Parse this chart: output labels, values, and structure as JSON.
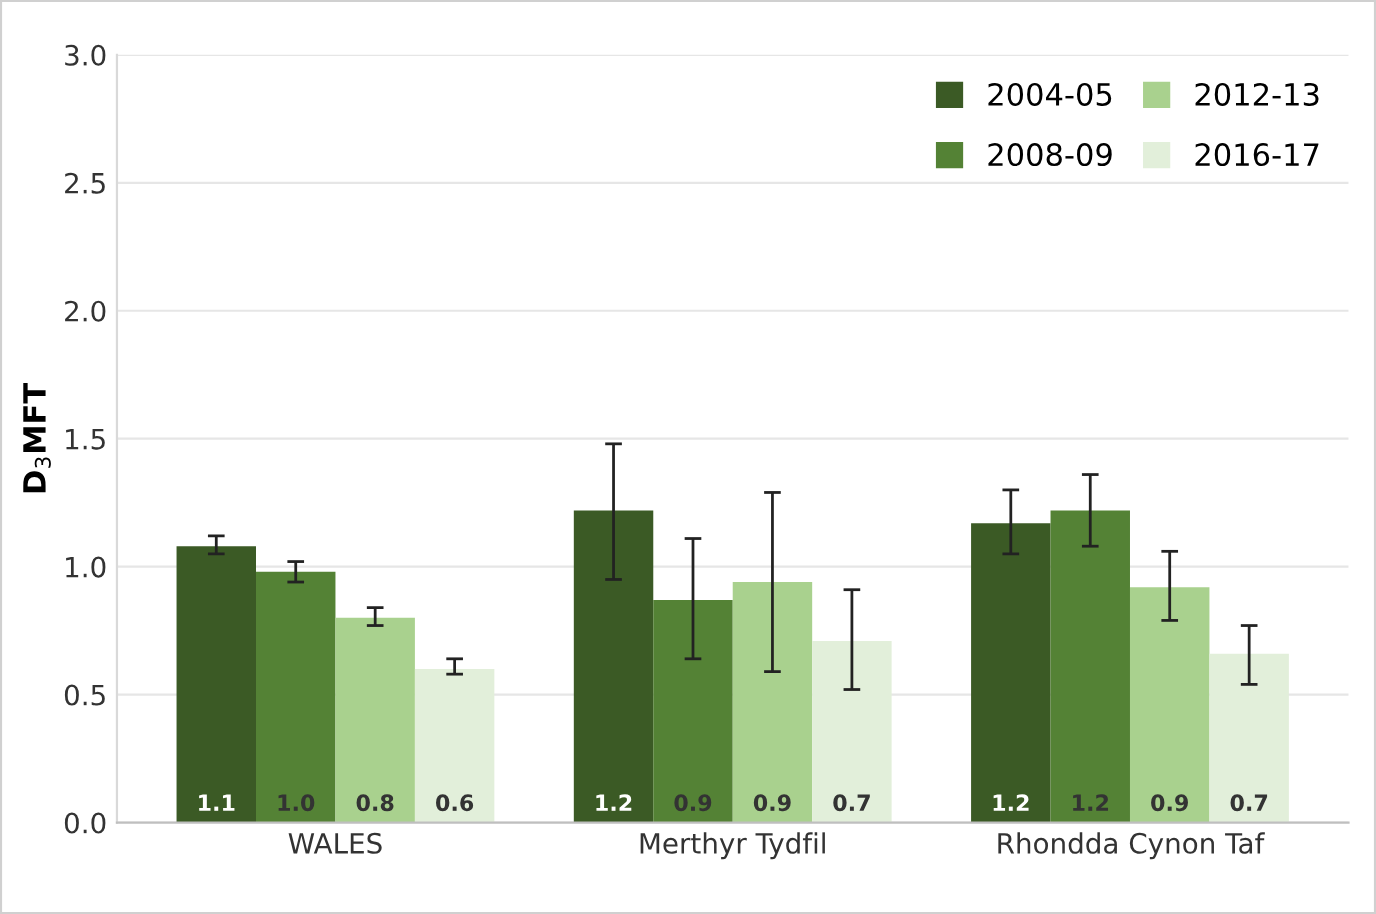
{
  "chart_data": {
    "type": "bar",
    "ylabel": "D$_{3}$MFT",
    "categories": [
      "WALES",
      "Merthyr Tydfil",
      "Rhondda Cynon Taf"
    ],
    "series": [
      {
        "name": "2004-05",
        "color": "#3b5a25",
        "values": [
          1.08,
          1.22,
          1.17
        ],
        "errors": [
          [
            1.05,
            1.12
          ],
          [
            0.95,
            1.48
          ],
          [
            1.05,
            1.3
          ]
        ],
        "value_labels": [
          "1.1",
          "1.2",
          "1.2"
        ]
      },
      {
        "name": "2008-09",
        "color": "#548235",
        "values": [
          0.98,
          0.87,
          1.22
        ],
        "errors": [
          [
            0.94,
            1.02
          ],
          [
            0.64,
            1.11
          ],
          [
            1.08,
            1.36
          ]
        ],
        "value_labels": [
          "1.0",
          "0.9",
          "1.2"
        ]
      },
      {
        "name": "2012-13",
        "color": "#a9d18e",
        "values": [
          0.8,
          0.94,
          0.92
        ],
        "errors": [
          [
            0.77,
            0.84
          ],
          [
            0.59,
            1.29
          ],
          [
            0.79,
            1.06
          ]
        ],
        "value_labels": [
          "0.8",
          "0.9",
          "0.9"
        ]
      },
      {
        "name": "2016-17",
        "color": "#e2efda",
        "values": [
          0.6,
          0.71,
          0.66
        ],
        "errors": [
          [
            0.58,
            0.64
          ],
          [
            0.52,
            0.91
          ],
          [
            0.54,
            0.77
          ]
        ],
        "value_labels": [
          "0.6",
          "0.7",
          "0.7"
        ]
      }
    ],
    "ylim": [
      0,
      3
    ],
    "yticks": [
      {
        "value": 0,
        "label": "0.0"
      },
      {
        "value": 0.5,
        "label": "0.5"
      },
      {
        "value": 1,
        "label": "1.0"
      },
      {
        "value": 1.5,
        "label": "1.5"
      },
      {
        "value": 2,
        "label": "2.0"
      },
      {
        "value": 2.5,
        "label": "2.5"
      },
      {
        "value": 3,
        "label": "3.0"
      }
    ],
    "grid": "y",
    "legend": "top right"
  }
}
